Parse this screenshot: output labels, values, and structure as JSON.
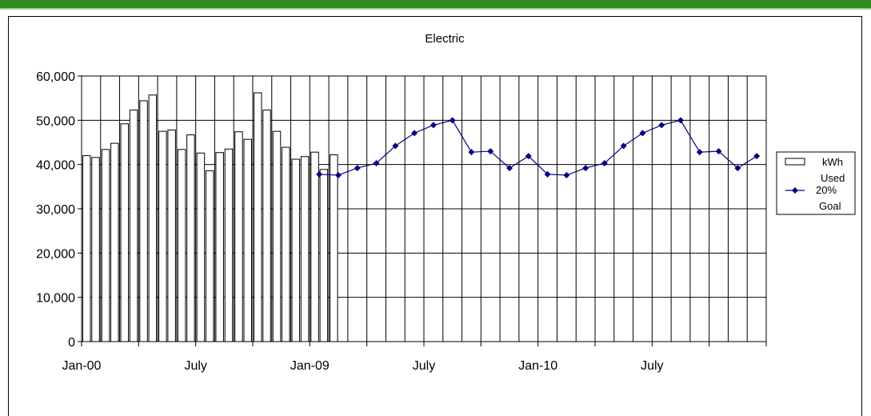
{
  "colors": {
    "top_bar": "#2e8b1d",
    "bar_fill": "#ffffff",
    "bar_stroke": "#000000",
    "line": "#000080",
    "grid": "#000000"
  },
  "chart_data": {
    "type": "bar",
    "title": "Electric",
    "xlabel": "",
    "ylabel": "",
    "ylim": [
      0,
      60000
    ],
    "ytick_labels": [
      "0",
      "10,000",
      "20,000",
      "30,000",
      "40,000",
      "50,000",
      "60,000"
    ],
    "xtick_labels": [
      {
        "index": 0,
        "label": "Jan-00"
      },
      {
        "index": 6,
        "label": "July"
      },
      {
        "index": 12,
        "label": "Jan-09"
      },
      {
        "index": 18,
        "label": "July"
      },
      {
        "index": 24,
        "label": "Jan-10"
      },
      {
        "index": 30,
        "label": "July"
      }
    ],
    "grid": true,
    "legend_position": "right",
    "n_categories": 36,
    "series": [
      {
        "name": "kWh Used",
        "type": "bar",
        "paired": true,
        "values": [
          [
            42000,
            41600
          ],
          [
            43400,
            44800
          ],
          [
            49200,
            52300
          ],
          [
            54400,
            55700
          ],
          [
            47500,
            47800
          ],
          [
            43400,
            46700
          ],
          [
            42600,
            38600
          ],
          [
            42700,
            43500
          ],
          [
            47400,
            45700
          ],
          [
            56200,
            52300
          ],
          [
            47500,
            43900
          ],
          [
            41200,
            41800
          ],
          [
            42800,
            38900
          ],
          [
            42200,
            null
          ],
          [
            null,
            null
          ],
          [
            null,
            null
          ],
          [
            null,
            null
          ],
          [
            null,
            null
          ],
          [
            null,
            null
          ],
          [
            null,
            null
          ],
          [
            null,
            null
          ],
          [
            null,
            null
          ],
          [
            null,
            null
          ],
          [
            null,
            null
          ],
          [
            null,
            null
          ],
          [
            null,
            null
          ],
          [
            null,
            null
          ],
          [
            null,
            null
          ],
          [
            null,
            null
          ],
          [
            null,
            null
          ],
          [
            null,
            null
          ],
          [
            null,
            null
          ],
          [
            null,
            null
          ],
          [
            null,
            null
          ],
          [
            null,
            null
          ],
          [
            null,
            null
          ]
        ]
      },
      {
        "name": "20% Goal",
        "type": "line",
        "values": [
          null,
          null,
          null,
          null,
          null,
          null,
          null,
          null,
          null,
          null,
          null,
          null,
          37800,
          37600,
          39200,
          40300,
          44200,
          47100,
          48900,
          50000,
          42800,
          43000,
          39200,
          41900,
          37800,
          37600,
          39200,
          40300,
          44200,
          47100,
          48900,
          50000,
          42800,
          43000,
          39200,
          41900
        ]
      }
    ]
  }
}
